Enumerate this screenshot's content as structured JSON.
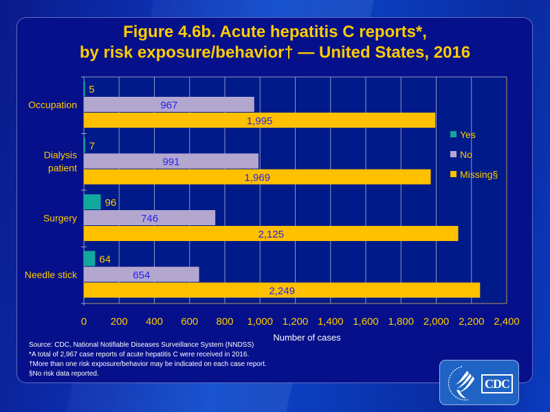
{
  "title": {
    "line1": "Figure 4.6b. Acute hepatitis C reports*,",
    "line2": "by risk exposure/behavior† — United States, 2016"
  },
  "chart_data": {
    "type": "bar",
    "orientation": "horizontal",
    "title": "Figure 4.6b. Acute hepatitis C reports*, by risk exposure/behavior† — United States, 2016",
    "xlabel": "Number of cases",
    "ylabel": "",
    "xlim": [
      0,
      2400
    ],
    "xticks": [
      0,
      200,
      400,
      600,
      800,
      1000,
      1200,
      1400,
      1600,
      1800,
      2000,
      2200,
      2400
    ],
    "xtick_labels": [
      "0",
      "200",
      "400",
      "600",
      "800",
      "1,000",
      "1,200",
      "1,400",
      "1,600",
      "1,800",
      "2,000",
      "2,200",
      "2,400"
    ],
    "grid": true,
    "legend_position": "right",
    "categories": [
      "Occupation",
      "Dialysis patient",
      "Surgery",
      "Needle stick"
    ],
    "category_lines": [
      [
        "Occupation"
      ],
      [
        "Dialysis",
        "patient"
      ],
      [
        "Surgery"
      ],
      [
        "Needle stick"
      ]
    ],
    "series": [
      {
        "name": "Yes",
        "color": "#13a89e",
        "values": [
          5,
          7,
          96,
          64
        ],
        "labels": [
          "5",
          "7",
          "96",
          "64"
        ]
      },
      {
        "name": "No",
        "color": "#b4a7cf",
        "values": [
          967,
          991,
          746,
          654
        ],
        "labels": [
          "967",
          "991",
          "746",
          "654"
        ]
      },
      {
        "name": "Missing§",
        "color": "#ffc000",
        "values": [
          1995,
          1969,
          2125,
          2249
        ],
        "labels": [
          "1,995",
          "1,969",
          "2,125",
          "2,249"
        ]
      }
    ]
  },
  "colors": {
    "title": "#ffcc00",
    "axis_text": "#ffcc00",
    "label_inside": "#2222ee",
    "label_outside": "#ffcc00",
    "panel": "#06108a"
  },
  "footnotes": [
    "Source: CDC, National Notifiable Diseases Surveillance System (NNDSS)",
    "*A total of 2,967 case reports of  acute hepatitis C were  received in 2016.",
    "†More than one risk exposure/behavior may be indicated on each case report.",
    "§No risk data reported."
  ],
  "logo": {
    "text": "CDC"
  }
}
